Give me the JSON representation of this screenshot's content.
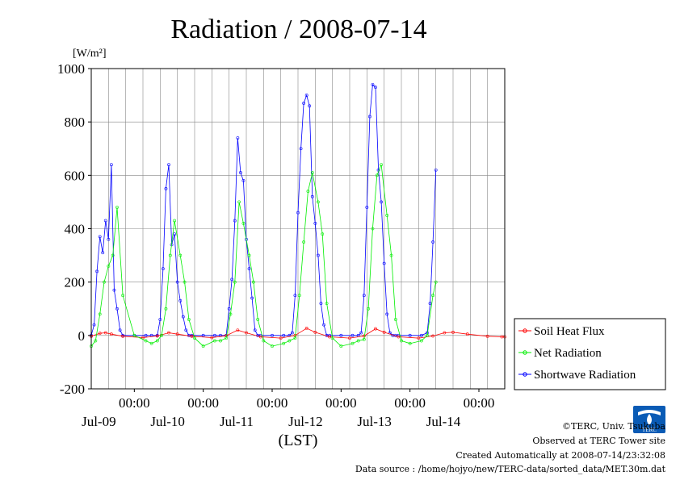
{
  "chart_data": {
    "type": "line",
    "title": "Radiation / 2008-07-14",
    "unit_label": "[W/m²]",
    "xlabel": "(LST)",
    "ylim": [
      -200,
      1000
    ],
    "yticks": [
      -200,
      0,
      200,
      400,
      600,
      800,
      1000
    ],
    "ytick_labels": [
      "-200",
      "0",
      "200",
      "400",
      "600",
      "800",
      "1000"
    ],
    "xlim": [
      "2008-07-08T09:00",
      "2008-07-14T09:00"
    ],
    "xticks": [
      "2008-07-09T00:00",
      "2008-07-10T00:00",
      "2008-07-11T00:00",
      "2008-07-12T00:00",
      "2008-07-13T00:00",
      "2008-07-14T00:00"
    ],
    "xtick_time_labels": [
      "00:00",
      "00:00",
      "00:00",
      "00:00",
      "00:00",
      "00:00"
    ],
    "xtick_date_labels": [
      "Jul-09",
      "Jul-10",
      "Jul-11",
      "Jul-12",
      "Jul-13",
      "Jul-14"
    ],
    "grid": true,
    "legend_position": "right",
    "series": [
      {
        "name": "Soil Heat Flux",
        "color": "#ff0000",
        "x": [
          "2008-07-08T09:00",
          "2008-07-08T12:00",
          "2008-07-08T14:00",
          "2008-07-08T16:00",
          "2008-07-08T20:00",
          "2008-07-09T03:00",
          "2008-07-09T08:00",
          "2008-07-09T12:00",
          "2008-07-09T15:00",
          "2008-07-09T20:00",
          "2008-07-10T03:00",
          "2008-07-10T08:00",
          "2008-07-10T12:00",
          "2008-07-10T15:00",
          "2008-07-10T20:00",
          "2008-07-11T03:00",
          "2008-07-11T08:00",
          "2008-07-11T12:00",
          "2008-07-11T15:00",
          "2008-07-11T20:00",
          "2008-07-12T03:00",
          "2008-07-12T08:00",
          "2008-07-12T12:00",
          "2008-07-12T15:00",
          "2008-07-12T20:00",
          "2008-07-13T03:00",
          "2008-07-13T08:00",
          "2008-07-13T12:00",
          "2008-07-13T15:00",
          "2008-07-13T20:00",
          "2008-07-14T03:00",
          "2008-07-14T08:00",
          "2008-07-14T09:00"
        ],
        "y": [
          -3,
          8,
          10,
          5,
          -3,
          -8,
          -2,
          10,
          5,
          -3,
          -8,
          -1,
          20,
          10,
          -5,
          -10,
          0,
          27,
          12,
          -5,
          -10,
          -2,
          25,
          12,
          -5,
          -10,
          -2,
          10,
          12,
          5,
          -3,
          -5,
          -5
        ]
      },
      {
        "name": "Net Radiation",
        "color": "#00ee00",
        "x": [
          "2008-07-08T09:00",
          "2008-07-08T10:30",
          "2008-07-08T12:00",
          "2008-07-08T13:30",
          "2008-07-08T15:00",
          "2008-07-08T16:30",
          "2008-07-08T18:00",
          "2008-07-08T20:00",
          "2008-07-09T00:00",
          "2008-07-09T04:00",
          "2008-07-09T06:00",
          "2008-07-09T08:00",
          "2008-07-09T09:30",
          "2008-07-09T11:00",
          "2008-07-09T12:30",
          "2008-07-09T14:00",
          "2008-07-09T16:00",
          "2008-07-09T17:30",
          "2008-07-09T19:00",
          "2008-07-09T21:00",
          "2008-07-10T00:00",
          "2008-07-10T04:00",
          "2008-07-10T06:00",
          "2008-07-10T08:00",
          "2008-07-10T09:30",
          "2008-07-10T11:00",
          "2008-07-10T12:30",
          "2008-07-10T14:00",
          "2008-07-10T16:00",
          "2008-07-10T17:30",
          "2008-07-10T19:00",
          "2008-07-10T21:00",
          "2008-07-11T00:00",
          "2008-07-11T04:00",
          "2008-07-11T06:00",
          "2008-07-11T08:00",
          "2008-07-11T09:30",
          "2008-07-11T11:00",
          "2008-07-11T12:30",
          "2008-07-11T14:00",
          "2008-07-11T16:00",
          "2008-07-11T17:30",
          "2008-07-11T19:00",
          "2008-07-11T21:00",
          "2008-07-12T00:00",
          "2008-07-12T04:00",
          "2008-07-12T06:00",
          "2008-07-12T08:00",
          "2008-07-12T09:30",
          "2008-07-12T11:00",
          "2008-07-12T12:30",
          "2008-07-12T14:00",
          "2008-07-12T16:00",
          "2008-07-12T17:30",
          "2008-07-12T19:00",
          "2008-07-12T21:00",
          "2008-07-13T00:00",
          "2008-07-13T04:00",
          "2008-07-13T06:00",
          "2008-07-13T08:00",
          "2008-07-13T09:00"
        ],
        "y": [
          -40,
          -20,
          80,
          200,
          260,
          300,
          480,
          150,
          0,
          -20,
          -30,
          -20,
          0,
          100,
          300,
          430,
          300,
          200,
          60,
          -10,
          -40,
          -20,
          -20,
          -10,
          80,
          200,
          500,
          420,
          300,
          200,
          60,
          -20,
          -40,
          -30,
          -20,
          -10,
          150,
          350,
          540,
          610,
          500,
          380,
          120,
          -10,
          -40,
          -30,
          -20,
          -15,
          100,
          400,
          600,
          640,
          450,
          300,
          60,
          -20,
          -30,
          -20,
          0,
          150,
          200
        ]
      }
    ]
  },
  "legend": {
    "items": [
      {
        "label": "Soil Heat Flux",
        "color": "#ff0000"
      },
      {
        "label": "Net Radiation",
        "color": "#00ee00"
      },
      {
        "label": "Shortwave Radiation",
        "color": "#0000ff"
      }
    ]
  },
  "shortwave": {
    "name": "Shortwave Radiation",
    "color": "#0000ff",
    "x": [
      "2008-07-08T09:00",
      "2008-07-08T10:00",
      "2008-07-08T11:00",
      "2008-07-08T12:00",
      "2008-07-08T13:00",
      "2008-07-08T14:00",
      "2008-07-08T15:00",
      "2008-07-08T16:00",
      "2008-07-08T17:00",
      "2008-07-08T18:00",
      "2008-07-08T19:00",
      "2008-07-08T20:00",
      "2008-07-09T00:00",
      "2008-07-09T04:00",
      "2008-07-09T06:00",
      "2008-07-09T08:00",
      "2008-07-09T09:00",
      "2008-07-09T10:00",
      "2008-07-09T11:00",
      "2008-07-09T12:00",
      "2008-07-09T13:00",
      "2008-07-09T14:00",
      "2008-07-09T15:00",
      "2008-07-09T16:00",
      "2008-07-09T17:00",
      "2008-07-09T18:00",
      "2008-07-09T19:00",
      "2008-07-09T20:00",
      "2008-07-10T00:00",
      "2008-07-10T04:00",
      "2008-07-10T06:00",
      "2008-07-10T08:00",
      "2008-07-10T09:00",
      "2008-07-10T10:00",
      "2008-07-10T11:00",
      "2008-07-10T12:00",
      "2008-07-10T13:00",
      "2008-07-10T14:00",
      "2008-07-10T15:00",
      "2008-07-10T16:00",
      "2008-07-10T17:00",
      "2008-07-10T18:00",
      "2008-07-10T19:00",
      "2008-07-10T20:00",
      "2008-07-11T00:00",
      "2008-07-11T04:00",
      "2008-07-11T06:00",
      "2008-07-11T07:00",
      "2008-07-11T08:00",
      "2008-07-11T09:00",
      "2008-07-11T10:00",
      "2008-07-11T11:00",
      "2008-07-11T12:00",
      "2008-07-11T13:00",
      "2008-07-11T14:00",
      "2008-07-11T15:00",
      "2008-07-11T16:00",
      "2008-07-11T17:00",
      "2008-07-11T18:00",
      "2008-07-11T19:00",
      "2008-07-11T20:00",
      "2008-07-12T00:00",
      "2008-07-12T04:00",
      "2008-07-12T06:00",
      "2008-07-12T07:00",
      "2008-07-12T08:00",
      "2008-07-12T09:00",
      "2008-07-12T10:00",
      "2008-07-12T11:00",
      "2008-07-12T12:00",
      "2008-07-12T13:00",
      "2008-07-12T14:00",
      "2008-07-12T15:00",
      "2008-07-12T16:00",
      "2008-07-12T17:00",
      "2008-07-12T18:00",
      "2008-07-12T19:00",
      "2008-07-12T20:00",
      "2008-07-13T00:00",
      "2008-07-13T04:00",
      "2008-07-13T06:00",
      "2008-07-13T07:00",
      "2008-07-13T08:00",
      "2008-07-13T09:00"
    ],
    "y": [
      0,
      40,
      240,
      370,
      310,
      430,
      360,
      640,
      170,
      100,
      20,
      0,
      0,
      0,
      0,
      0,
      60,
      250,
      550,
      640,
      340,
      380,
      200,
      130,
      70,
      20,
      0,
      0,
      0,
      0,
      0,
      0,
      100,
      210,
      430,
      740,
      610,
      580,
      360,
      250,
      140,
      20,
      0,
      0,
      0,
      0,
      0,
      10,
      150,
      460,
      700,
      870,
      900,
      860,
      520,
      420,
      300,
      120,
      40,
      0,
      0,
      0,
      0,
      0,
      10,
      150,
      480,
      820,
      940,
      930,
      620,
      500,
      270,
      80,
      10,
      0,
      0,
      0,
      0,
      0,
      10,
      120,
      350,
      620
    ]
  },
  "footer": {
    "copyright": "©TERC, Univ. Tsukuba",
    "site": "Observed at TERC Tower site",
    "created": "Created Automatically at 2008-07-14/23:32:08",
    "source": "Data source : /home/hojyo/new/TERC-data/sorted_data/MET.30m.dat"
  },
  "logo_text": "TERC"
}
